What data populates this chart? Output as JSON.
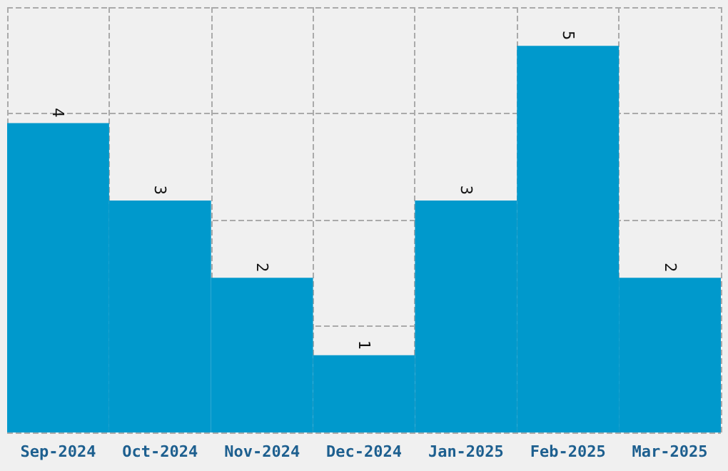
{
  "chart_data": {
    "type": "bar",
    "categories": [
      "Sep-2024",
      "Oct-2024",
      "Nov-2024",
      "Dec-2024",
      "Jan-2025",
      "Feb-2025",
      "Mar-2025"
    ],
    "values": [
      4,
      3,
      2,
      1,
      3,
      5,
      2
    ],
    "color": "#0099cc",
    "data_labels": true,
    "ylim": [
      0,
      5.5
    ],
    "yticks": [
      {
        "value": 0,
        "label": null
      },
      {
        "value": 1.375,
        "label": null
      },
      {
        "value": 2.75,
        "label": null
      },
      {
        "value": 4.125,
        "label": null
      },
      {
        "value": 5.5,
        "label": null
      }
    ],
    "grid": true,
    "tick_labels": "x"
  }
}
